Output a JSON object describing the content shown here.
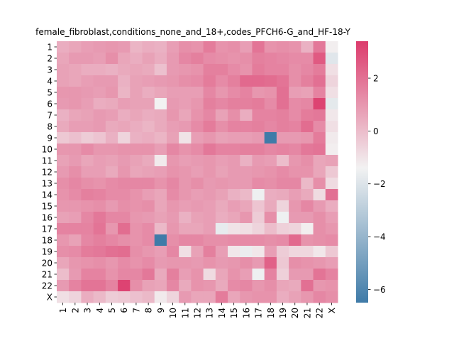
{
  "chart_data": {
    "type": "heatmap",
    "title": "female_fibroblast,conditions_none_and_18+,codes_PFCH6-G_and_HF-18-Y",
    "xlabel": "",
    "ylabel": "",
    "x_categories": [
      "1",
      "2",
      "3",
      "4",
      "5",
      "6",
      "7",
      "8",
      "9",
      "10",
      "11",
      "12",
      "13",
      "14",
      "15",
      "16",
      "17",
      "18",
      "19",
      "20",
      "21",
      "22",
      "X"
    ],
    "y_categories": [
      "1",
      "2",
      "3",
      "4",
      "5",
      "6",
      "7",
      "8",
      "9",
      "10",
      "11",
      "12",
      "13",
      "14",
      "15",
      "16",
      "17",
      "18",
      "19",
      "20",
      "21",
      "22",
      "X"
    ],
    "colorbar": {
      "min": -6.5,
      "max": 3.4,
      "ticks": [
        2,
        0,
        -2,
        -4,
        -6
      ],
      "tick_labels": [
        "2",
        "0",
        "−2",
        "−4",
        "−6"
      ],
      "low_color": "#3f7ba8",
      "mid_color": "#f2f2f2",
      "high_color": "#dc3b6c",
      "center": -1.4
    },
    "values": [
      [
        0.4,
        0.6,
        0.8,
        0.9,
        1.0,
        0.9,
        0.2,
        0.4,
        0.3,
        0.8,
        1.2,
        1.1,
        1.7,
        1.1,
        1.2,
        0.8,
        1.9,
        1.1,
        1.2,
        1.1,
        0.3,
        1.8,
        -1.3
      ],
      [
        0.6,
        0.9,
        0.9,
        0.8,
        1.2,
        0.6,
        0.4,
        0.7,
        0.4,
        0.9,
        1.4,
        1.6,
        1.3,
        1.2,
        1.1,
        1.2,
        1.6,
        1.5,
        1.4,
        1.3,
        1.3,
        2.6,
        -1.9
      ],
      [
        0.7,
        0.6,
        0.4,
        0.4,
        0.3,
        0.5,
        0.6,
        0.5,
        -0.1,
        0.9,
        1.0,
        1.1,
        1.6,
        1.6,
        1.3,
        1.1,
        1.7,
        1.5,
        1.5,
        1.2,
        1.4,
        1.7,
        -0.9
      ],
      [
        0.7,
        0.6,
        0.8,
        0.9,
        0.9,
        0.3,
        0.7,
        0.8,
        0.9,
        1.0,
        1.2,
        1.3,
        1.7,
        1.3,
        1.6,
        2.2,
        2.2,
        2.1,
        1.9,
        1.2,
        1.6,
        2.0,
        -0.6
      ],
      [
        1.0,
        1.0,
        0.9,
        0.8,
        1.0,
        0.2,
        0.7,
        0.4,
        0.6,
        0.8,
        0.8,
        0.8,
        1.4,
        1.0,
        1.3,
        1.5,
        1.0,
        1.1,
        2.0,
        0.8,
        0.7,
        1.5,
        -0.9
      ],
      [
        0.9,
        1.0,
        0.8,
        0.4,
        0.5,
        0.8,
        0.7,
        0.7,
        -1.4,
        0.9,
        0.8,
        1.0,
        1.6,
        1.4,
        1.6,
        1.6,
        1.7,
        1.3,
        2.0,
        1.3,
        1.4,
        3.2,
        -1.8
      ],
      [
        0.3,
        0.6,
        0.7,
        0.9,
        0.8,
        0.4,
        0.6,
        0.4,
        0.5,
        1.0,
        0.6,
        1.1,
        1.4,
        0.7,
        1.2,
        0.4,
        1.5,
        1.5,
        1.6,
        1.3,
        1.7,
        1.8,
        -1.1
      ],
      [
        0.5,
        0.8,
        0.8,
        0.9,
        0.5,
        0.6,
        0.4,
        0.2,
        0.5,
        0.8,
        0.9,
        1.3,
        1.7,
        1.2,
        1.5,
        1.5,
        1.6,
        1.4,
        1.6,
        1.5,
        2.1,
        1.3,
        -0.9
      ],
      [
        -0.3,
        -0.1,
        -0.4,
        -0.2,
        0.3,
        -0.6,
        0.3,
        0.4,
        0.2,
        0.7,
        -1.0,
        0.8,
        1.0,
        0.7,
        0.8,
        0.8,
        0.9,
        -6.5,
        0.9,
        0.9,
        1.0,
        1.7,
        -1.2
      ],
      [
        1.0,
        1.0,
        1.3,
        1.0,
        1.0,
        1.1,
        1.1,
        1.1,
        0.8,
        1.4,
        1.1,
        1.3,
        1.8,
        1.5,
        1.5,
        1.6,
        1.6,
        1.4,
        1.5,
        1.4,
        1.8,
        1.9,
        -1.3
      ],
      [
        0.7,
        0.9,
        0.6,
        0.8,
        0.7,
        0.9,
        0.7,
        0.5,
        -1.2,
        1.0,
        0.8,
        0.9,
        1.0,
        0.8,
        0.9,
        0.3,
        0.9,
        0.8,
        0.0,
        1.0,
        1.2,
        0.6,
        0.7
      ],
      [
        0.9,
        1.2,
        0.8,
        0.8,
        0.5,
        1.0,
        0.6,
        0.7,
        0.8,
        1.1,
        1.0,
        0.8,
        1.0,
        0.7,
        0.9,
        0.9,
        1.0,
        1.1,
        1.3,
        1.1,
        1.1,
        0.6,
        -0.3
      ],
      [
        1.2,
        1.4,
        1.2,
        1.1,
        1.3,
        1.4,
        1.4,
        1.4,
        1.1,
        1.4,
        1.0,
        1.2,
        0.9,
        1.0,
        0.9,
        0.9,
        1.3,
        1.2,
        1.4,
        1.4,
        0.1,
        1.2,
        -0.8
      ],
      [
        1.1,
        1.3,
        1.6,
        1.5,
        1.3,
        1.3,
        1.1,
        0.8,
        0.6,
        1.3,
        1.0,
        0.8,
        0.9,
        0.7,
        0.3,
        0.1,
        -1.5,
        0.4,
        0.5,
        0.8,
        0.5,
        -0.8,
        2.0
      ],
      [
        1.0,
        1.0,
        1.1,
        1.2,
        0.9,
        1.2,
        1.1,
        1.2,
        0.6,
        1.0,
        0.8,
        0.9,
        0.8,
        0.5,
        0.8,
        0.6,
        -0.2,
        0.5,
        -0.6,
        1.0,
        1.4,
        0.9,
        0.4
      ],
      [
        0.7,
        0.8,
        1.4,
        1.8,
        1.4,
        1.4,
        1.0,
        0.9,
        0.7,
        0.9,
        0.3,
        0.7,
        0.8,
        0.4,
        0.6,
        1.0,
        -0.4,
        1.2,
        -1.5,
        0.9,
        0.9,
        1.2,
        0.8
      ],
      [
        1.5,
        1.5,
        1.5,
        1.9,
        1.0,
        2.1,
        1.1,
        1.3,
        0.1,
        1.0,
        0.6,
        0.6,
        0.8,
        -1.7,
        -1.0,
        -0.9,
        -0.6,
        0.0,
        -0.5,
        -0.6,
        -1.3,
        1.2,
        1.0
      ],
      [
        1.0,
        0.7,
        1.4,
        1.6,
        1.4,
        1.2,
        1.1,
        1.3,
        -6.5,
        1.2,
        1.4,
        1.4,
        1.2,
        1.2,
        1.3,
        1.3,
        1.3,
        1.2,
        1.3,
        2.2,
        1.1,
        1.2,
        1.3
      ],
      [
        1.2,
        1.3,
        1.7,
        1.8,
        2.0,
        2.1,
        1.2,
        1.0,
        0.8,
        1.4,
        -0.9,
        0.7,
        1.6,
        0.8,
        -1.1,
        -1.6,
        -1.1,
        0.8,
        -0.4,
        -0.7,
        -0.7,
        -1.1,
        -0.3
      ],
      [
        0.6,
        1.0,
        1.1,
        1.2,
        1.0,
        1.3,
        1.1,
        1.3,
        0.9,
        1.0,
        1.0,
        0.9,
        1.1,
        0.9,
        1.0,
        1.2,
        0.9,
        2.4,
        -0.3,
        1.2,
        1.1,
        1.0,
        0.8
      ],
      [
        0.0,
        0.9,
        1.5,
        1.5,
        1.1,
        1.4,
        1.4,
        1.8,
        0.5,
        1.6,
        0.8,
        1.1,
        -0.8,
        0.6,
        1.1,
        0.8,
        -1.5,
        1.5,
        -0.5,
        0.9,
        0.9,
        1.9,
        1.5
      ],
      [
        0.9,
        1.5,
        1.9,
        1.9,
        1.5,
        3.2,
        1.2,
        0.7,
        0.6,
        1.4,
        0.5,
        1.1,
        1.0,
        0.5,
        1.3,
        1.4,
        1.0,
        1.2,
        0.6,
        0.5,
        2.0,
        1.0,
        1.1
      ],
      [
        -0.9,
        -0.6,
        0.4,
        0.1,
        -0.4,
        -0.3,
        -0.1,
        0.1,
        -1.2,
        -0.6,
        0.9,
        0.6,
        0.6,
        1.7,
        0.6,
        1.0,
        1.1,
        1.1,
        0.4,
        0.7,
        1.0,
        1.4,
        1.2
      ]
    ]
  }
}
